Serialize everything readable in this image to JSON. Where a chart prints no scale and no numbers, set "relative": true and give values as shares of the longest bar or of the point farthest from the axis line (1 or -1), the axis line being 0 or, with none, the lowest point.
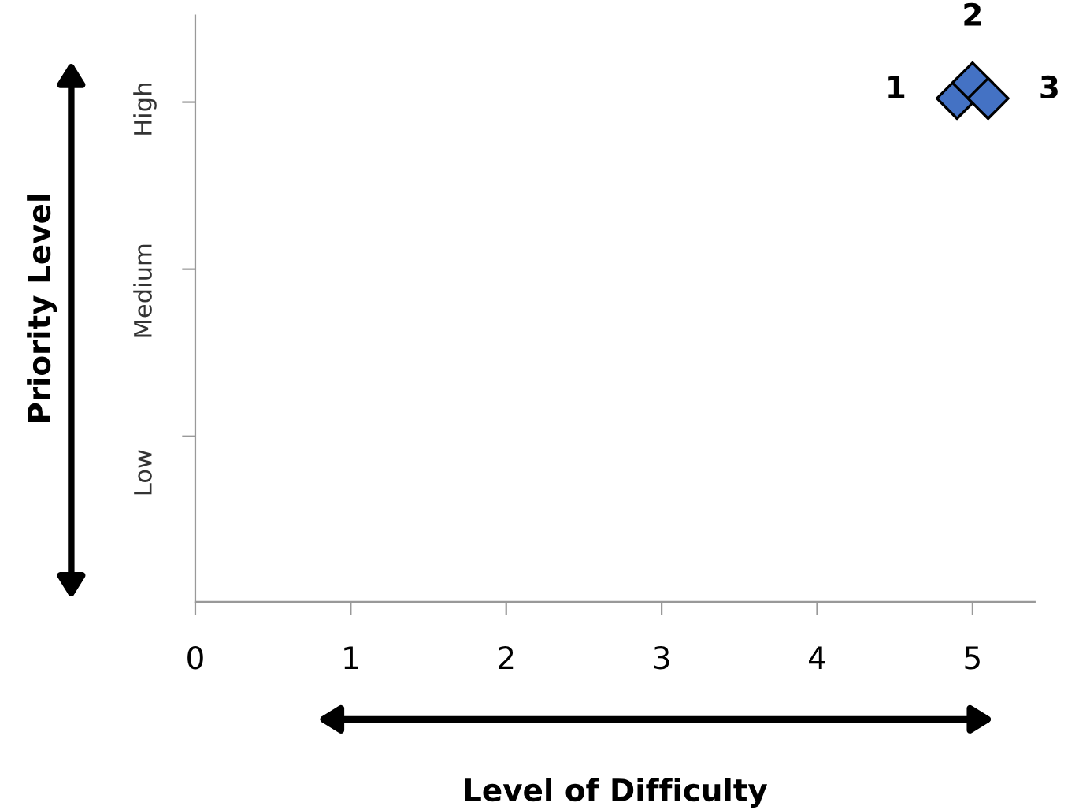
{
  "chart_data": {
    "type": "scatter",
    "relative": true,
    "xlabel": "Level of Difficulty",
    "ylabel": "Priority Level",
    "x": [
      4.9,
      5.0,
      5.1
    ],
    "series": [
      {
        "color": "#4472c4",
        "values": [
          0.97,
          1,
          0.97
        ]
      }
    ],
    "marker": "diamond",
    "annotations": [
      {
        "text": "1",
        "x": 4.9,
        "y": 0.97
      },
      {
        "text": "2",
        "x": 5.0,
        "y": 1
      },
      {
        "text": "3",
        "x": 5.1,
        "y": 0.97
      },
      "Low",
      "Medium",
      "High"
    ],
    "xlim": [
      0,
      5.4
    ],
    "xticks": [
      0,
      1,
      2,
      3,
      4,
      5
    ],
    "grid": false
  }
}
